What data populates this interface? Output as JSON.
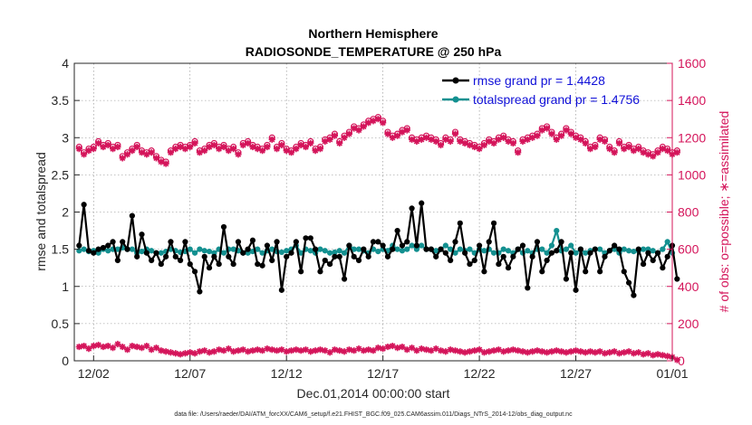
{
  "colors": {
    "rmse": "#000000",
    "spread": "#139090",
    "obs": "#d4145a",
    "legend_text": "#1010d8",
    "axis": "#262626",
    "grid": "#8a8a8a"
  },
  "chart_data": {
    "type": "line",
    "title": "Northern Hemisphere",
    "subtitle": "RADIOSONDE_TEMPERATURE @ 250 hPa",
    "xlabel": "Dec.01,2014 00:00:00 start",
    "ylabel_left": "rmse and totalspread",
    "ylabel_right": "# of obs: o=possible; ∗=assimilated",
    "footnote": "data file: /Users/raeder/DAI/ATM_forcXX/CAM6_setup/f.e21.FHIST_BGC.f09_025.CAM6assim.011/Diags_NTrS_2014-12/obs_diag_output.nc",
    "xlim": [
      0,
      124
    ],
    "ylim_left": [
      0,
      4
    ],
    "ylim_right": [
      0,
      1600
    ],
    "yticks_left": [
      "0",
      "0.5",
      "1",
      "1.5",
      "2",
      "2.5",
      "3",
      "3.5",
      "4"
    ],
    "yticks_right": [
      "0",
      "200",
      "400",
      "600",
      "800",
      "1000",
      "1200",
      "1400",
      "1600"
    ],
    "xticks": [
      {
        "pos": 4,
        "label": "12/02"
      },
      {
        "pos": 24,
        "label": "12/07"
      },
      {
        "pos": 44,
        "label": "12/12"
      },
      {
        "pos": 64,
        "label": "12/17"
      },
      {
        "pos": 84,
        "label": "12/22"
      },
      {
        "pos": 104,
        "label": "12/27"
      },
      {
        "pos": 124,
        "label": "01/01"
      }
    ],
    "legend": [
      {
        "label": "rmse grand pr = 1.4428"
      },
      {
        "label": "totalspread grand pr = 1.4756"
      }
    ],
    "series": [
      {
        "name": "rmse",
        "values": [
          1.55,
          2.1,
          1.48,
          1.45,
          1.5,
          1.52,
          1.55,
          1.6,
          1.35,
          1.6,
          1.5,
          1.95,
          1.4,
          1.7,
          1.45,
          1.35,
          1.45,
          1.3,
          1.4,
          1.6,
          1.4,
          1.35,
          1.6,
          1.3,
          1.2,
          0.93,
          1.4,
          1.25,
          1.4,
          1.3,
          1.8,
          1.4,
          1.3,
          1.6,
          1.45,
          1.5,
          1.62,
          1.3,
          1.28,
          1.55,
          1.35,
          1.6,
          0.95,
          1.4,
          1.45,
          1.6,
          1.2,
          1.65,
          1.65,
          1.5,
          1.2,
          1.35,
          1.3,
          1.4,
          1.4,
          1.1,
          1.55,
          1.4,
          1.35,
          1.5,
          1.4,
          1.6,
          1.6,
          1.55,
          1.4,
          1.5,
          1.75,
          1.55,
          1.6,
          2.05,
          1.55,
          2.12,
          1.5,
          1.5,
          1.4,
          1.5,
          1.45,
          1.35,
          1.6,
          1.85,
          1.45,
          1.3,
          1.35,
          1.55,
          1.2,
          1.6,
          1.85,
          1.3,
          1.4,
          1.25,
          1.4,
          1.5,
          1.55,
          0.98,
          1.4,
          1.6,
          1.2,
          1.35,
          1.45,
          1.48,
          1.6,
          1.1,
          1.45,
          0.95,
          1.5,
          1.2,
          1.45,
          1.5,
          1.2,
          1.4,
          1.48,
          1.55,
          1.5,
          1.2,
          1.05,
          0.88,
          1.5,
          1.3,
          1.45,
          1.35,
          1.45,
          1.25,
          1.4,
          1.55,
          1.1
        ]
      },
      {
        "name": "totalspread",
        "values": [
          1.48,
          1.5,
          1.47,
          1.48,
          1.45,
          1.5,
          1.48,
          1.5,
          1.5,
          1.52,
          1.5,
          1.5,
          1.45,
          1.47,
          1.5,
          1.48,
          1.45,
          1.45,
          1.47,
          1.5,
          1.48,
          1.46,
          1.47,
          1.5,
          1.45,
          1.5,
          1.48,
          1.47,
          1.45,
          1.5,
          1.45,
          1.5,
          1.5,
          1.48,
          1.45,
          1.45,
          1.47,
          1.5,
          1.45,
          1.48,
          1.5,
          1.47,
          1.46,
          1.48,
          1.5,
          1.55,
          1.45,
          1.5,
          1.48,
          1.45,
          1.5,
          1.48,
          1.45,
          1.46,
          1.48,
          1.45,
          1.55,
          1.5,
          1.5,
          1.48,
          1.45,
          1.5,
          1.47,
          1.5,
          1.48,
          1.55,
          1.5,
          1.48,
          1.5,
          1.55,
          1.5,
          1.55,
          1.5,
          1.5,
          1.48,
          1.5,
          1.55,
          1.5,
          1.45,
          1.5,
          1.48,
          1.5,
          1.45,
          1.5,
          1.48,
          1.5,
          1.45,
          1.45,
          1.5,
          1.48,
          1.45,
          1.5,
          1.45,
          1.48,
          1.45,
          1.5,
          1.5,
          1.45,
          1.55,
          1.75,
          1.48,
          1.5,
          1.55,
          1.45,
          1.5,
          1.45,
          1.48,
          1.5,
          1.5,
          1.45,
          1.48,
          1.5,
          1.45,
          1.5,
          1.48,
          1.47,
          1.48,
          1.5,
          1.5,
          1.48,
          1.45,
          1.5,
          1.6,
          1.45
        ]
      },
      {
        "name": "obs_possible",
        "values": [
          1150,
          1120,
          1140,
          1150,
          1180,
          1160,
          1170,
          1150,
          1160,
          1100,
          1120,
          1140,
          1160,
          1130,
          1120,
          1130,
          1100,
          1080,
          1070,
          1130,
          1150,
          1160,
          1150,
          1160,
          1180,
          1130,
          1140,
          1160,
          1170,
          1150,
          1160,
          1140,
          1150,
          1120,
          1170,
          1180,
          1160,
          1150,
          1140,
          1160,
          1200,
          1150,
          1170,
          1140,
          1130,
          1150,
          1170,
          1160,
          1180,
          1140,
          1150,
          1190,
          1200,
          1220,
          1180,
          1210,
          1230,
          1260,
          1250,
          1270,
          1290,
          1300,
          1310,
          1290,
          1230,
          1210,
          1220,
          1240,
          1250,
          1200,
          1190,
          1200,
          1210,
          1200,
          1190,
          1170,
          1200,
          1190,
          1230,
          1190,
          1180,
          1170,
          1160,
          1150,
          1170,
          1190,
          1180,
          1200,
          1210,
          1190,
          1180,
          1130,
          1190,
          1200,
          1210,
          1220,
          1250,
          1260,
          1230,
          1200,
          1220,
          1250,
          1230,
          1210,
          1200,
          1180,
          1150,
          1160,
          1200,
          1190,
          1150,
          1130,
          1180,
          1150,
          1160,
          1140,
          1150,
          1130,
          1120,
          1110,
          1130,
          1150,
          1140,
          1120,
          1130
        ]
      },
      {
        "name": "obs_assimilated",
        "values": [
          1140,
          1110,
          1130,
          1140,
          1170,
          1150,
          1160,
          1140,
          1150,
          1090,
          1110,
          1130,
          1150,
          1120,
          1110,
          1120,
          1090,
          1070,
          1060,
          1120,
          1140,
          1150,
          1140,
          1150,
          1170,
          1120,
          1130,
          1150,
          1160,
          1140,
          1150,
          1130,
          1140,
          1110,
          1160,
          1170,
          1150,
          1140,
          1130,
          1150,
          1190,
          1140,
          1160,
          1130,
          1120,
          1140,
          1160,
          1150,
          1170,
          1130,
          1140,
          1180,
          1190,
          1210,
          1170,
          1200,
          1220,
          1250,
          1240,
          1260,
          1280,
          1290,
          1300,
          1280,
          1220,
          1200,
          1210,
          1230,
          1240,
          1190,
          1180,
          1190,
          1200,
          1190,
          1180,
          1160,
          1190,
          1180,
          1220,
          1180,
          1170,
          1160,
          1150,
          1140,
          1160,
          1180,
          1170,
          1190,
          1200,
          1180,
          1170,
          1120,
          1180,
          1190,
          1200,
          1210,
          1240,
          1250,
          1220,
          1190,
          1210,
          1240,
          1220,
          1200,
          1190,
          1170,
          1140,
          1150,
          1190,
          1180,
          1140,
          1120,
          1170,
          1140,
          1150,
          1130,
          1140,
          1120,
          1110,
          1100,
          1120,
          1140,
          1130,
          1110,
          1120
        ]
      },
      {
        "name": "obs_bottom",
        "values": [
          75,
          80,
          65,
          80,
          85,
          75,
          80,
          70,
          90,
          75,
          60,
          80,
          75,
          70,
          80,
          60,
          70,
          55,
          50,
          45,
          40,
          35,
          40,
          45,
          40,
          50,
          55,
          45,
          50,
          60,
          55,
          65,
          50,
          55,
          60,
          50,
          55,
          60,
          55,
          65,
          60,
          55,
          60,
          50,
          55,
          60,
          55,
          60,
          50,
          55,
          60,
          55,
          45,
          60,
          55,
          50,
          60,
          55,
          65,
          55,
          60,
          55,
          70,
          65,
          75,
          80,
          70,
          75,
          60,
          70,
          55,
          65,
          60,
          55,
          65,
          55,
          50,
          60,
          55,
          50,
          45,
          50,
          55,
          60,
          45,
          50,
          55,
          60,
          50,
          55,
          60,
          55,
          50,
          45,
          50,
          55,
          50,
          45,
          50,
          55,
          50,
          45,
          50,
          55,
          50,
          45,
          50,
          45,
          50,
          40,
          45,
          50,
          40,
          45,
          50,
          40,
          45,
          35,
          40,
          30,
          35,
          30,
          25,
          20,
          5
        ]
      }
    ]
  }
}
